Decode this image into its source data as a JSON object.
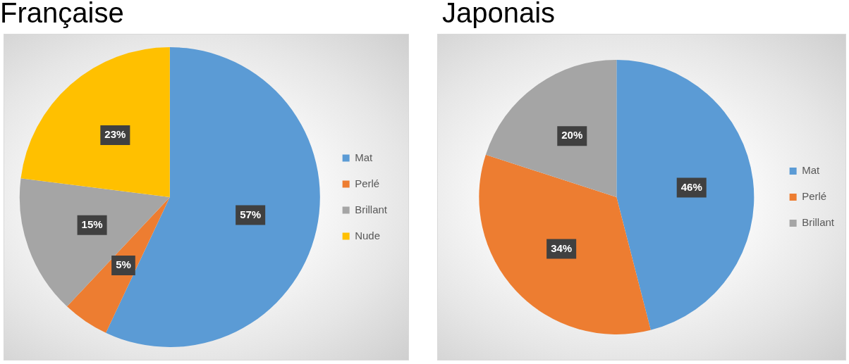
{
  "chart_data": [
    {
      "type": "pie",
      "title": "Française",
      "categories": [
        "Mat",
        "Perlé",
        "Brillant",
        "Nude"
      ],
      "values": [
        57,
        5,
        15,
        23
      ],
      "colors": [
        "#5b9bd5",
        "#ed7d31",
        "#a5a5a5",
        "#ffc000"
      ],
      "value_labels": [
        "57%",
        "5%",
        "15%",
        "23%"
      ],
      "legend": "right"
    },
    {
      "type": "pie",
      "title": "Japonais",
      "categories": [
        "Mat",
        "Perlé",
        "Brillant"
      ],
      "values": [
        46,
        34,
        20
      ],
      "colors": [
        "#5b9bd5",
        "#ed7d31",
        "#a5a5a5"
      ],
      "value_labels": [
        "46%",
        "34%",
        "20%"
      ],
      "legend": "right"
    }
  ]
}
